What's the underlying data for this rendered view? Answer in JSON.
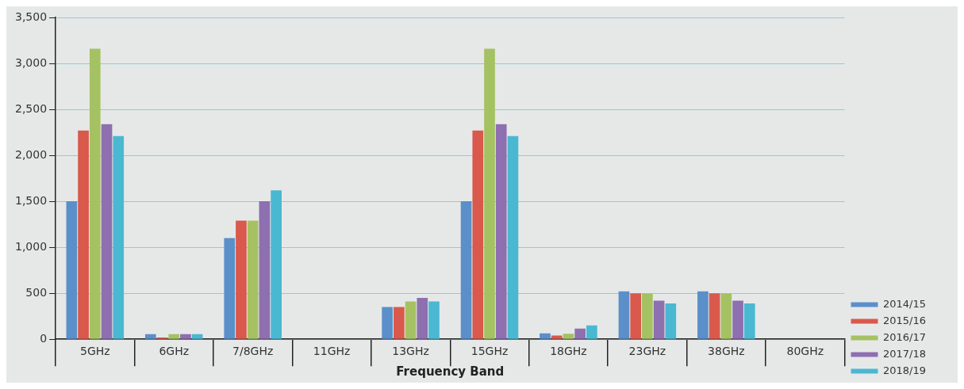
{
  "chart_data": {
    "type": "bar",
    "xlabel": "Frequency Band",
    "categories": [
      "5GHz",
      "6GHz",
      "7/8GHz",
      "11GHz",
      "13GHz",
      "15GHz",
      "18GHz",
      "23GHz",
      "38GHz",
      "80GHz"
    ],
    "series": [
      {
        "name": "2014/15",
        "color": "#5b8fc9",
        "values": [
          1500,
          55,
          1100,
          null,
          350,
          1500,
          65,
          520,
          520,
          null
        ]
      },
      {
        "name": "2015/16",
        "color": "#d9594c",
        "values": [
          2270,
          20,
          1290,
          null,
          350,
          2270,
          40,
          500,
          500,
          null
        ]
      },
      {
        "name": "2016/17",
        "color": "#a5c262",
        "values": [
          3160,
          55,
          1290,
          null,
          410,
          3160,
          60,
          500,
          500,
          null
        ]
      },
      {
        "name": "2017/18",
        "color": "#8e6fb0",
        "values": [
          2340,
          55,
          1500,
          null,
          450,
          2340,
          115,
          420,
          420,
          null
        ]
      },
      {
        "name": "2018/19",
        "color": "#4ab8d1",
        "values": [
          2210,
          55,
          1620,
          null,
          410,
          2210,
          150,
          390,
          390,
          null
        ]
      }
    ],
    "ylim": [
      0,
      3500
    ],
    "yticks": [
      {
        "value": 0,
        "label": "0"
      },
      {
        "value": 500,
        "label": "500"
      },
      {
        "value": 1000,
        "label": "1,000"
      },
      {
        "value": 1500,
        "label": "1,500"
      },
      {
        "value": 2000,
        "label": "2,000"
      },
      {
        "value": 2500,
        "label": "2,500"
      },
      {
        "value": 3000,
        "label": "3,000"
      },
      {
        "value": 3500,
        "label": "3,500"
      }
    ],
    "grid": "y",
    "legend": "bottom right"
  }
}
